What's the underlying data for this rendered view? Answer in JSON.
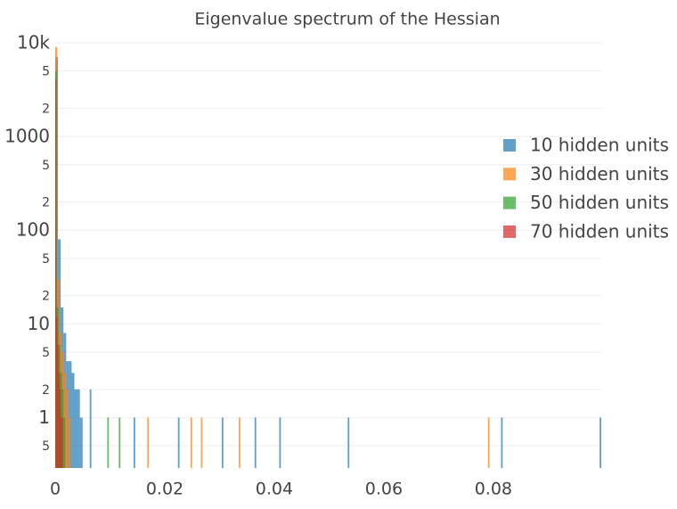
{
  "chart_data": {
    "type": "histogram",
    "title": "Eigenvalue spectrum of the Hessian",
    "log_y": true,
    "barmode": "overlay",
    "opacity": 0.7,
    "grid": true,
    "legend_position": "right",
    "xlim": [
      0,
      0.0997
    ],
    "ylim": [
      0.29,
      10000
    ],
    "xticks": [
      0,
      0.02,
      0.04,
      0.06,
      0.08
    ],
    "yticks": [
      {
        "value": 0.5,
        "label": "5"
      },
      1,
      {
        "value": 2,
        "label": "2"
      },
      {
        "value": 5,
        "label": "5"
      },
      10,
      {
        "value": 20,
        "label": "2"
      },
      {
        "value": 50,
        "label": "5"
      },
      100,
      {
        "value": 200,
        "label": "2"
      },
      {
        "value": 500,
        "label": "5"
      },
      1000,
      {
        "value": 2000,
        "label": "2"
      },
      {
        "value": 5000,
        "label": "5"
      },
      {
        "value": 10000,
        "label": "10k"
      }
    ],
    "series": [
      {
        "name": "10 hidden units",
        "color": "#1f77b4",
        "bins": [
          0,
          0.0005,
          0.001,
          0.0015,
          0.002,
          0.0025,
          0.003,
          0.0035,
          0.004,
          0.0045,
          0.005,
          0.0063,
          0.0066,
          0.0143,
          0.0146,
          0.0224,
          0.0227,
          0.0304,
          0.0307,
          0.0364,
          0.0367,
          0.0409,
          0.0412,
          0.0534,
          0.0537,
          0.0814,
          0.0817,
          0.0994,
          0.0997
        ],
        "values": [
          7000,
          80,
          15,
          8,
          4,
          4,
          3,
          2,
          2,
          1,
          0,
          2,
          0,
          1,
          0,
          1,
          0,
          1,
          0,
          1,
          0,
          1,
          0,
          1,
          0,
          1,
          0,
          1
        ]
      },
      {
        "name": "30 hidden units",
        "color": "#ff7f0e",
        "bins": [
          0,
          0.0004,
          0.0008,
          0.0012,
          0.0016,
          0.002,
          0.0024,
          0.0028,
          0.0168,
          0.0171,
          0.0247,
          0.025,
          0.0266,
          0.0269,
          0.0335,
          0.0338,
          0.079,
          0.0793
        ],
        "values": [
          9000,
          30,
          8,
          5,
          3,
          2,
          1,
          0,
          1,
          0,
          1,
          0,
          1,
          0,
          1,
          0,
          1
        ]
      },
      {
        "name": "50 hidden units",
        "color": "#2ca02c",
        "bins": [
          0,
          0.0003,
          0.0006,
          0.0009,
          0.0012,
          0.0015,
          0.0018,
          0.0095,
          0.0098,
          0.0116,
          0.0119
        ],
        "values": [
          5000,
          15,
          6,
          3,
          2,
          1,
          0,
          1,
          0,
          1
        ]
      },
      {
        "name": "70 hidden units",
        "color": "#d62728",
        "bins": [
          0,
          0.0002,
          0.0004,
          0.0006,
          0.0008,
          0.001,
          0.0012,
          0.0014
        ],
        "values": [
          4000,
          12,
          6,
          3,
          2,
          1,
          1
        ]
      }
    ]
  }
}
